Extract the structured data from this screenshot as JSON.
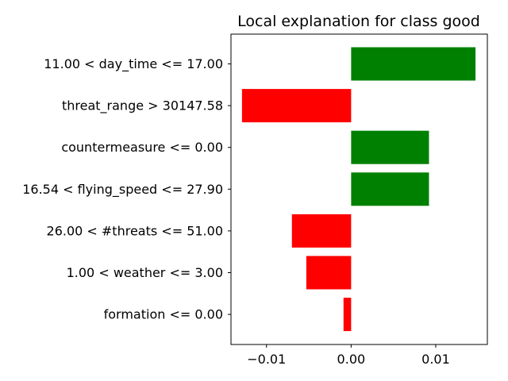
{
  "chart_data": {
    "type": "bar",
    "orientation": "horizontal",
    "title": "Local explanation for class good",
    "xlabel": "",
    "ylabel": "",
    "categories": [
      "11.00 < day_time <= 17.00",
      "threat_range > 30147.58",
      "countermeasure <= 0.00",
      "16.54 < flying_speed <= 27.90",
      "26.00 < #threats <= 51.00",
      "1.00 < weather <= 3.00",
      "formation <= 0.00"
    ],
    "values": [
      0.0147,
      -0.0129,
      0.0092,
      0.0092,
      -0.007,
      -0.0053,
      -0.0009
    ],
    "xlim": [
      -0.0142,
      0.0161
    ],
    "xticks": [
      -0.01,
      0.0,
      0.01
    ],
    "xtick_labels": [
      "−0.01",
      "0.00",
      "0.01"
    ],
    "positive_color": "#008000",
    "negative_color": "#ff0000",
    "grid": false,
    "legend": "none"
  }
}
